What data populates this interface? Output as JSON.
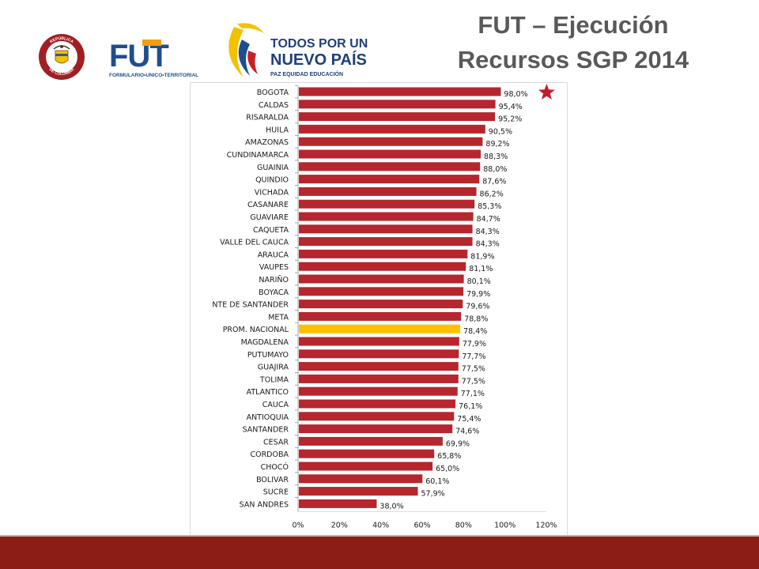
{
  "slide": {
    "title_line1": "FUT – Ejecución",
    "title_line2": "Recursos SGP 2014"
  },
  "logos": {
    "seal_text_top": "REPÚBLICA",
    "seal_text_bottom": "DE COLOMBIA",
    "fut_text": "FUT",
    "fut_subtitle": "FORMULARIO•UNICO•TERRITORIAL",
    "todos_line1": "TODOS POR UN",
    "todos_line2": "NUEVO PAÍS",
    "todos_tagline": "PAZ  EQUIDAD  EDUCACIÓN"
  },
  "colors": {
    "bar": "#b5262e",
    "highlight_bar": "#ffc000",
    "star": "#c0202a",
    "title": "#595959",
    "footer": "#8b1d14"
  },
  "chart_data": {
    "type": "bar",
    "orientation": "horizontal",
    "categories": [
      "BOGOTA",
      "CALDAS",
      "RISARALDA",
      "HUILA",
      "AMAZONAS",
      "CUNDINAMARCA",
      "GUAINIA",
      "QUINDIO",
      "VICHADA",
      "CASANARE",
      "GUAVIARE",
      "CAQUETA",
      "VALLE DEL CAUCA",
      "ARAUCA",
      "VAUPES",
      "NARIÑO",
      "BOYACA",
      "NTE DE SANTANDER",
      "META",
      "PROM. NACIONAL",
      "MAGDALENA",
      "PUTUMAYO",
      "GUAJIRA",
      "TOLIMA",
      "ATLANTICO",
      "CAUCA",
      "ANTIOQUIA",
      "SANTANDER",
      "CESAR",
      "CORDOBA",
      "CHOCÓ",
      "BOLIVAR",
      "SUCRE",
      "SAN ANDRES"
    ],
    "values": [
      98.0,
      95.4,
      95.2,
      90.5,
      89.2,
      88.3,
      88.0,
      87.6,
      86.2,
      85.3,
      84.7,
      84.3,
      84.3,
      81.9,
      81.1,
      80.1,
      79.9,
      79.6,
      78.8,
      78.4,
      77.9,
      77.7,
      77.5,
      77.5,
      77.1,
      76.1,
      75.4,
      74.6,
      69.9,
      65.8,
      65.0,
      60.1,
      57.9,
      38.0
    ],
    "data_labels": [
      "98,0%",
      "95,4%",
      "95,2%",
      "90,5%",
      "89,2%",
      "88,3%",
      "88,0%",
      "87,6%",
      "86,2%",
      "85,3%",
      "84,7%",
      "84,3%",
      "84,3%",
      "81,9%",
      "81,1%",
      "80,1%",
      "79,9%",
      "79,6%",
      "78,8%",
      "78,4%",
      "77,9%",
      "77,7%",
      "77,5%",
      "77,5%",
      "77,1%",
      "76,1%",
      "75,4%",
      "74,6%",
      "69,9%",
      "65,8%",
      "65,0%",
      "60,1%",
      "57,9%",
      "38,0%"
    ],
    "highlight_category": "PROM. NACIONAL",
    "starred_category": "BOGOTA",
    "x_ticks": [
      "0%",
      "20%",
      "40%",
      "60%",
      "80%",
      "100%",
      "120%"
    ],
    "xlim": [
      0,
      120
    ],
    "unit": "%",
    "grid": false,
    "legend": "none"
  }
}
